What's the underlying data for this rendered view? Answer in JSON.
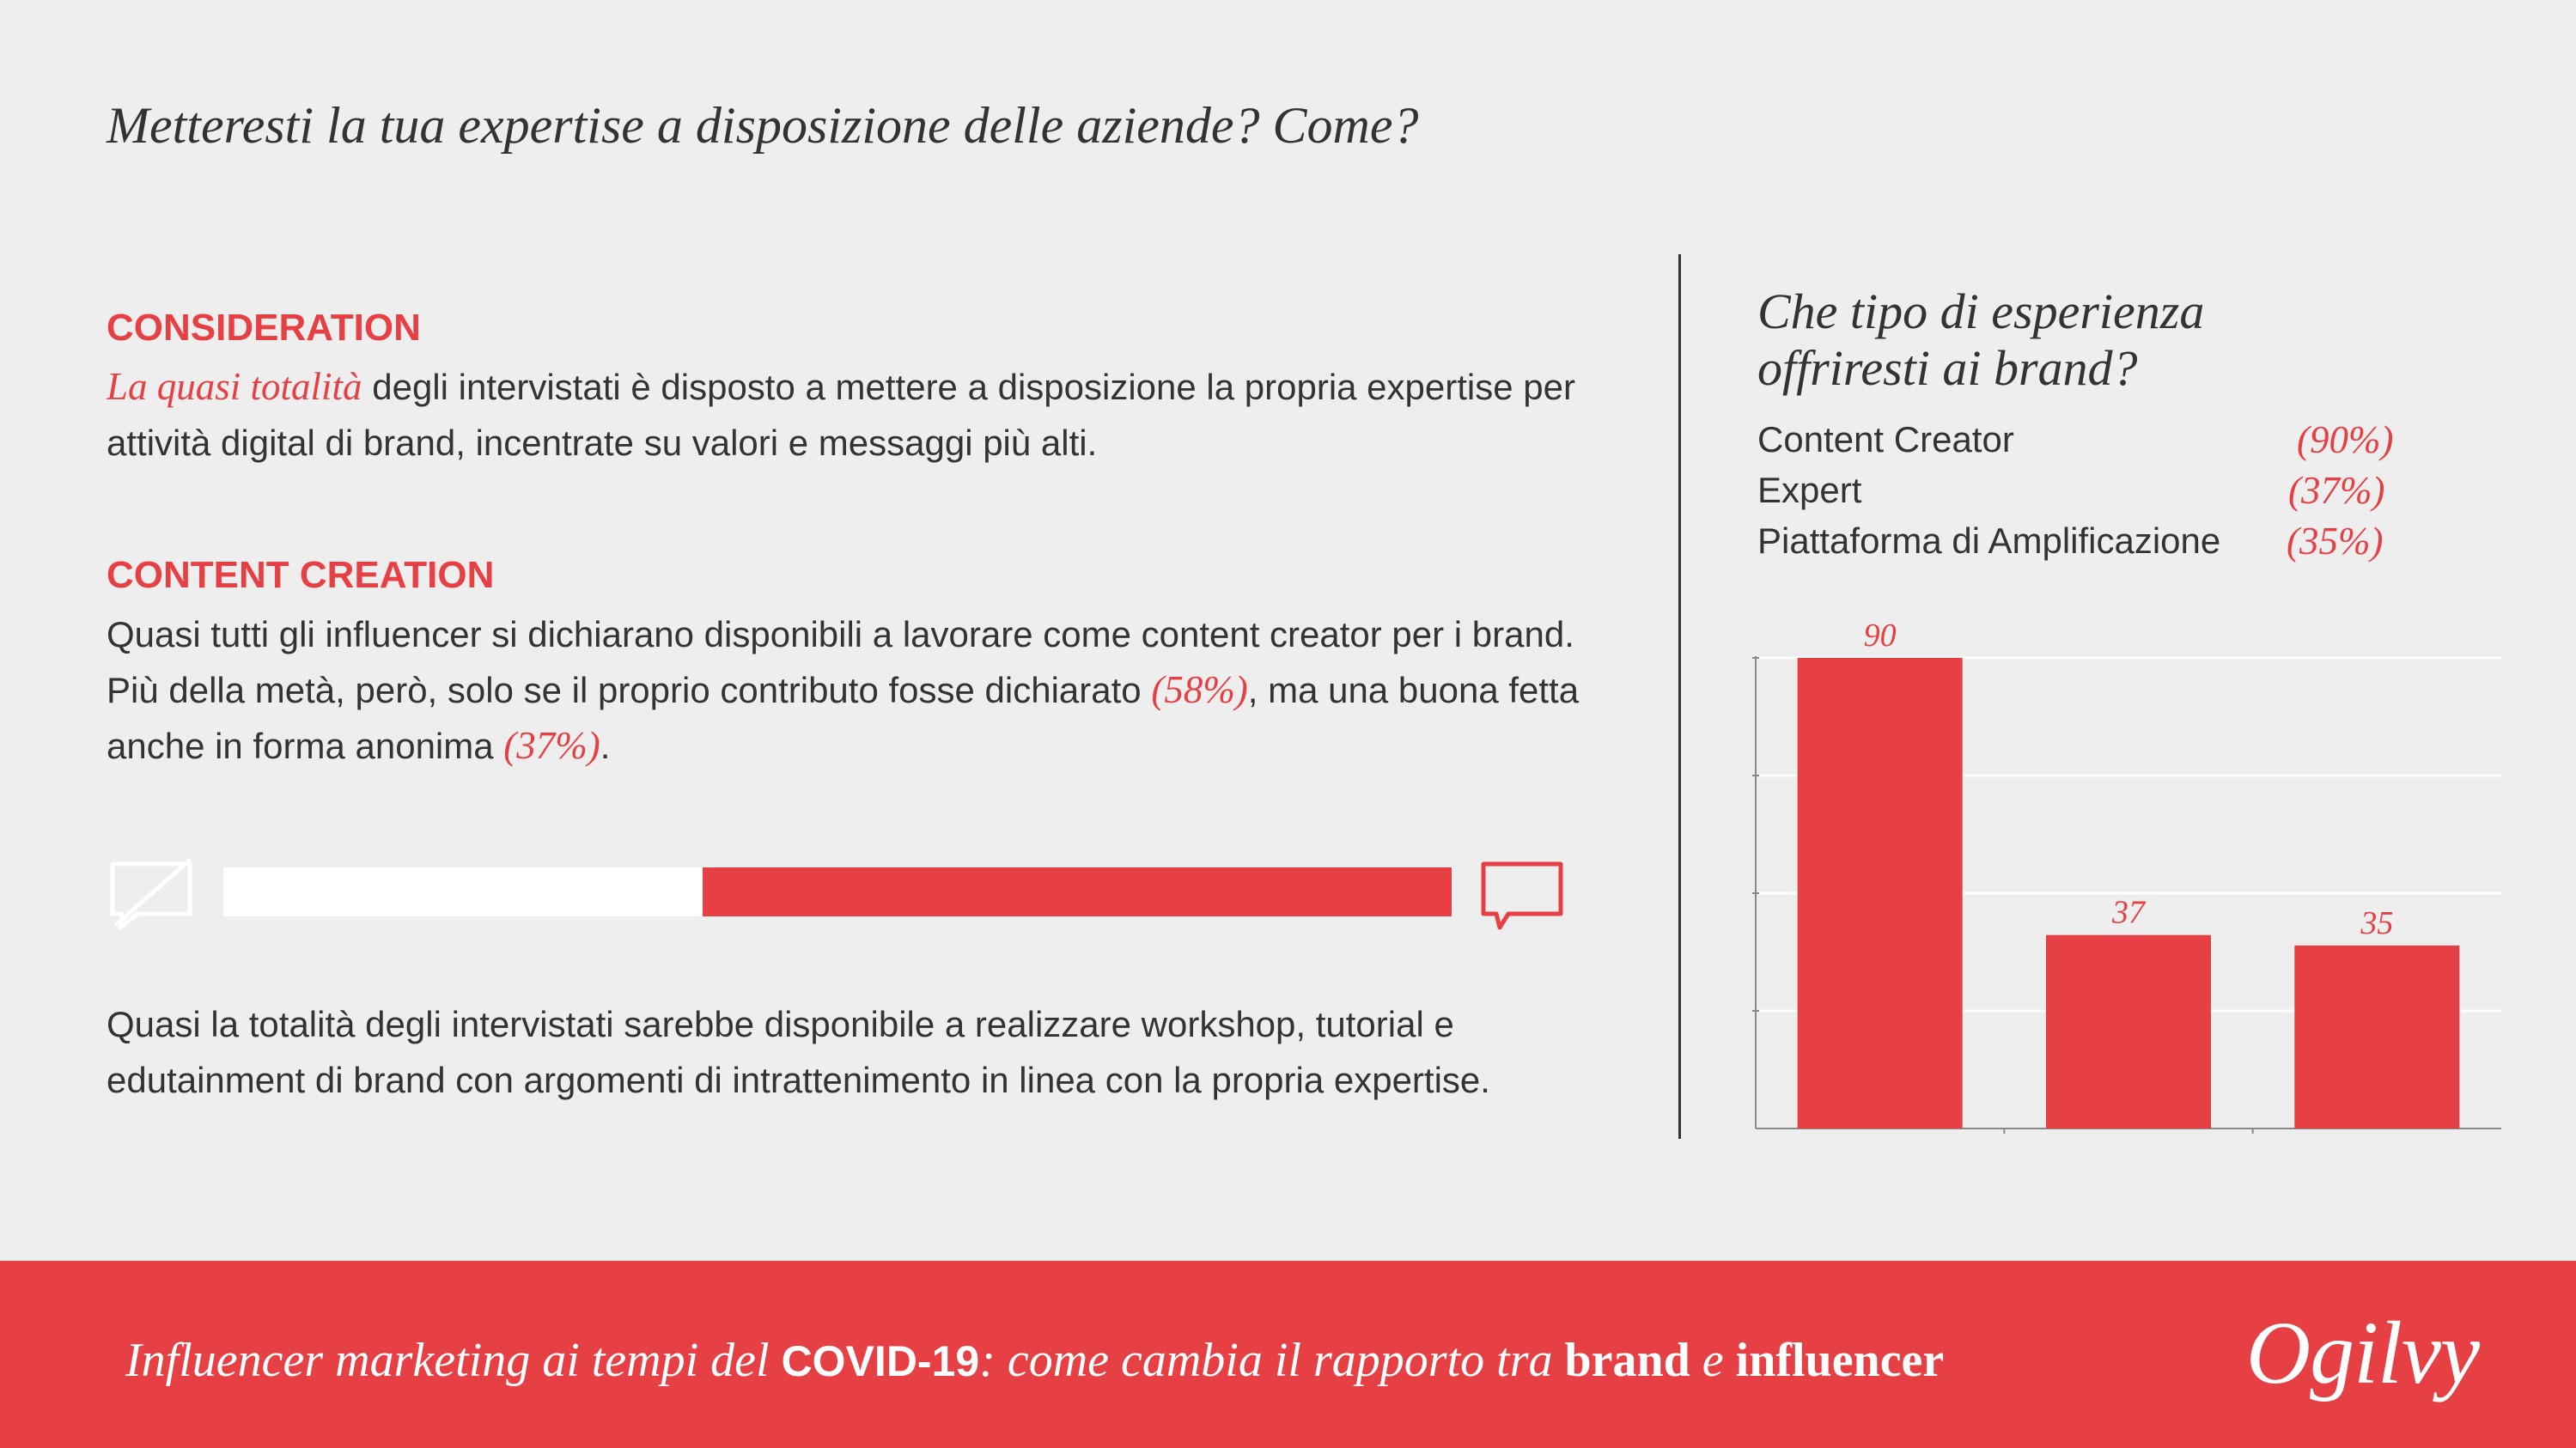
{
  "title": "Metteresti la tua expertise a disposizione delle aziende? Come?",
  "consideration": {
    "heading": "CONSIDERATION",
    "highlight": "La quasi totalità",
    "text": " degli intervistati è disposto a mettere a disposizione la propria expertise per attività digital di brand, incentrate su valori e messaggi più alti."
  },
  "content_creation": {
    "heading": "CONTENT CREATION",
    "text_1": "Quasi tutti gli influencer si dichiarano disponibili a lavorare come content creator per i brand. Più della metà, però, solo se il proprio contributo fosse dichiarato ",
    "declared_pct": "(58%)",
    "text_2": ", ma una buona fetta anche in forma anonima ",
    "anonymous_pct": "(37%)",
    "text_3": "."
  },
  "split_bar": {
    "declared_fraction": 0.61,
    "anonymous_icon": "crossed-speech-bubble-icon",
    "declared_icon": "speech-bubble-icon"
  },
  "closing_text": "Quasi la totalità degli intervistati sarebbe disponibile a realizzare workshop, tutorial e edutainment di brand con argomenti di intrattenimento in linea con la propria expertise.",
  "chart_panel": {
    "question": "Che tipo di esperienza offriresti ai brand?",
    "legend": [
      {
        "label": "Content Creator",
        "value": "(90%)"
      },
      {
        "label": "Expert",
        "value": "(37%)"
      },
      {
        "label": "Piattaforma di Amplificazione",
        "value": "(35%)"
      }
    ]
  },
  "chart_data": {
    "type": "bar",
    "categories": [
      "Content Creator",
      "Expert",
      "Piattaforma di Amplificazione"
    ],
    "values": [
      90,
      37,
      35
    ],
    "data_labels": [
      "90",
      "37",
      "35"
    ],
    "title": "",
    "xlabel": "",
    "ylabel": "",
    "ylim": [
      0,
      90
    ],
    "grid": true,
    "bar_color": "#e64045"
  },
  "footer": {
    "part_1": "Influencer marketing ai tempi del ",
    "part_2": "COVID-19",
    "part_3": ": ",
    "part_4": "come cambia il rapporto tra ",
    "part_5": "brand",
    "part_6": " e ",
    "part_7": "influencer",
    "logo": "Ogilvy"
  },
  "colors": {
    "accent": "#e64045",
    "background": "#eeeeee",
    "text": "#333333"
  }
}
